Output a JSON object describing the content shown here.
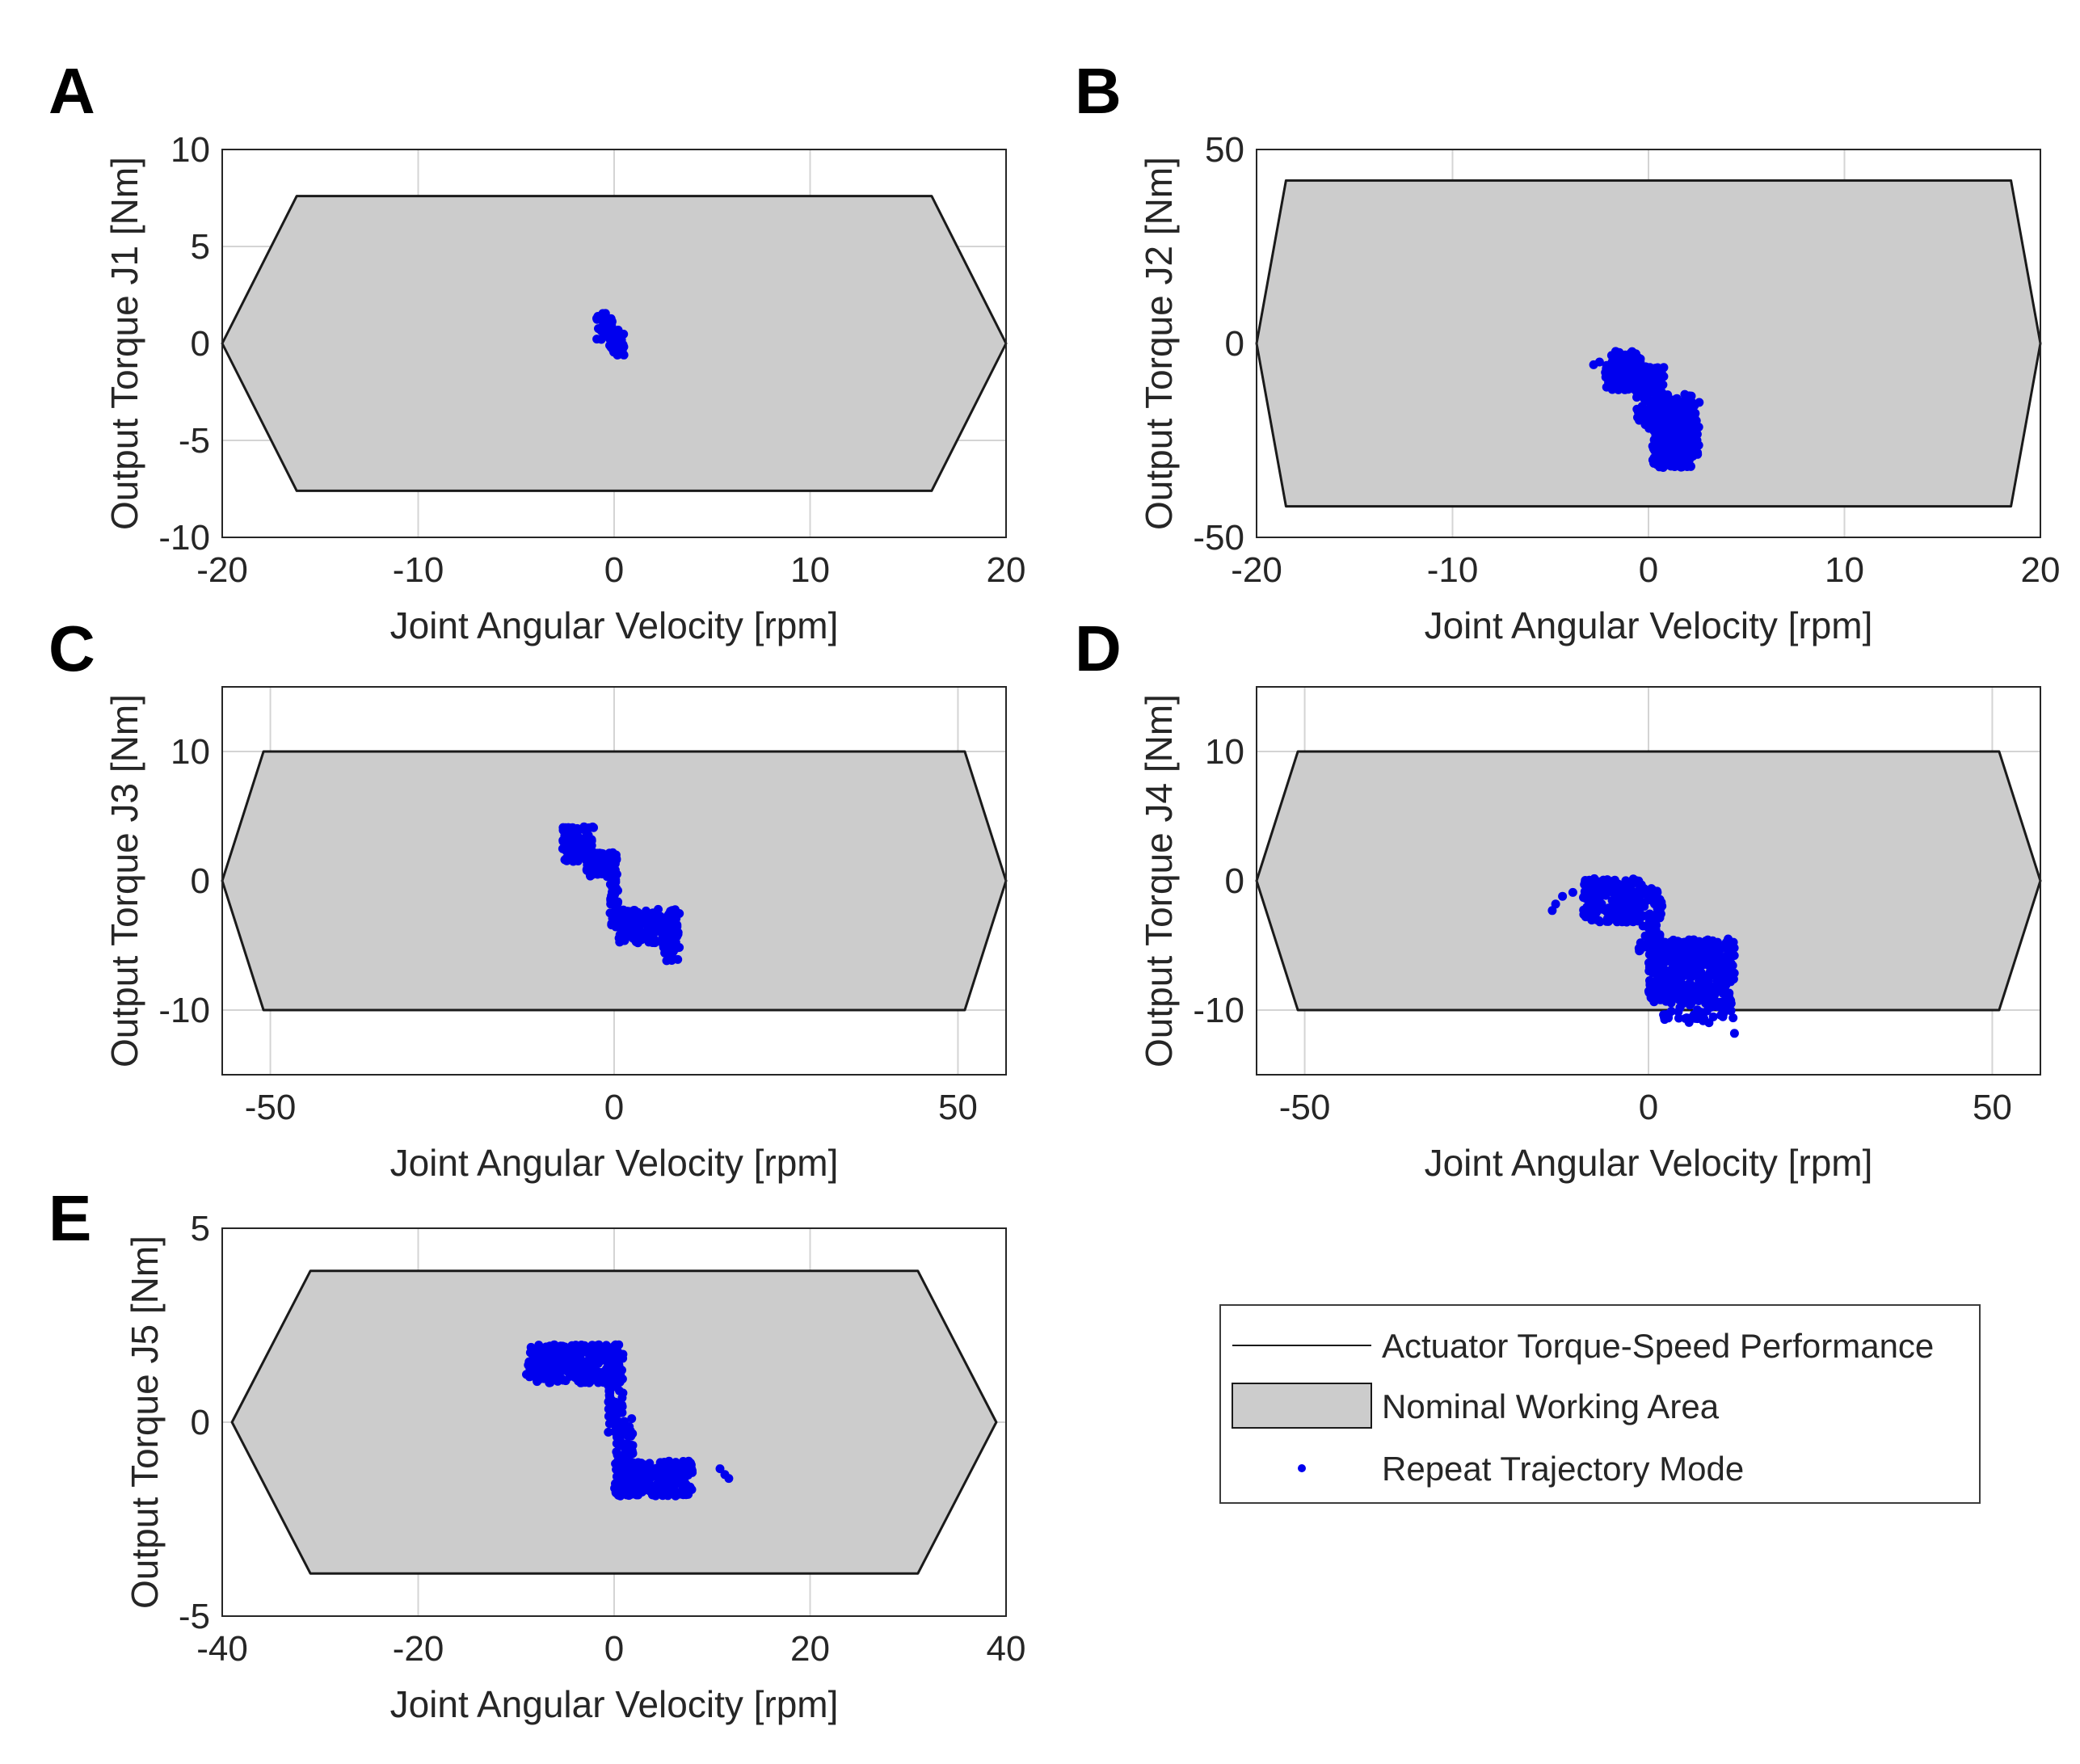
{
  "colors": {
    "region_fill": "#cccccc",
    "envelope_line": "#1a1a1a",
    "points": "#0000ee",
    "grid": "#d4d4d4",
    "axes": "#262626",
    "text": "#262626"
  },
  "legend": {
    "items": [
      {
        "label": "Actuator Torque-Speed Performance",
        "kind": "line"
      },
      {
        "label": "Nominal Working Area",
        "kind": "patch"
      },
      {
        "label": "Repeat Trajectory Mode",
        "kind": "marker"
      }
    ]
  },
  "chart_data": [
    {
      "panel": "A",
      "type": "scatter",
      "xlabel": "Joint Angular Velocity [rpm]",
      "ylabel": "Output Torque J1 [Nm]",
      "xlim": [
        -20,
        20
      ],
      "ylim": [
        -10,
        10
      ],
      "xticks": [
        -20,
        -10,
        0,
        10,
        20
      ],
      "yticks": [
        -10,
        -5,
        0,
        5,
        10
      ],
      "envelope": [
        [
          -20,
          0
        ],
        [
          -16.2,
          7.6
        ],
        [
          16.2,
          7.6
        ],
        [
          20,
          0
        ],
        [
          16.2,
          -7.6
        ],
        [
          -16.2,
          -7.6
        ]
      ],
      "clusters": [
        {
          "x_range": [
            -0.9,
            -0.1
          ],
          "y_range": [
            0.2,
            1.6
          ],
          "count": 40
        },
        {
          "x_range": [
            -0.3,
            0.5
          ],
          "y_range": [
            -0.6,
            0.8
          ],
          "count": 45
        }
      ],
      "points": []
    },
    {
      "panel": "B",
      "type": "scatter",
      "xlabel": "Joint Angular Velocity [rpm]",
      "ylabel": "Output Torque J2 [Nm]",
      "xlim": [
        -20,
        20
      ],
      "ylim": [
        -50,
        50
      ],
      "xticks": [
        -20,
        -10,
        0,
        10,
        20
      ],
      "yticks": [
        -50,
        0,
        50
      ],
      "envelope": [
        [
          -20,
          0
        ],
        [
          -18.5,
          42
        ],
        [
          18.5,
          42
        ],
        [
          20,
          0
        ],
        [
          18.5,
          -42
        ],
        [
          -18.5,
          -42
        ]
      ],
      "clusters": [
        {
          "x_range": [
            -2.2,
            -0.4
          ],
          "y_range": [
            -12,
            -2
          ],
          "count": 160
        },
        {
          "x_range": [
            -0.6,
            0.8
          ],
          "y_range": [
            -22,
            -6
          ],
          "count": 160
        },
        {
          "x_range": [
            0.2,
            2.2
          ],
          "y_range": [
            -32,
            -13
          ],
          "count": 260
        },
        {
          "x_range": [
            1.2,
            2.6
          ],
          "y_range": [
            -30,
            -15
          ],
          "count": 120
        }
      ],
      "points": [
        [
          -2.8,
          -5.5
        ],
        [
          -2.5,
          -4.8
        ]
      ]
    },
    {
      "panel": "C",
      "type": "scatter",
      "xlabel": "Joint Angular Velocity [rpm]",
      "ylabel": "Output Torque J3 [Nm]",
      "xlim": [
        -57,
        57
      ],
      "ylim": [
        -15,
        15
      ],
      "xticks": [
        -50,
        0,
        50
      ],
      "yticks": [
        -10,
        0,
        10
      ],
      "envelope": [
        [
          -57,
          0
        ],
        [
          -51,
          10
        ],
        [
          51,
          10
        ],
        [
          57,
          0
        ],
        [
          51,
          -10
        ],
        [
          -51,
          -10
        ]
      ],
      "clusters": [
        {
          "x_range": [
            -7.5,
            -3
          ],
          "y_range": [
            1.5,
            4.2
          ],
          "count": 150
        },
        {
          "x_range": [
            -4,
            0.3
          ],
          "y_range": [
            0.3,
            2.2
          ],
          "count": 110
        },
        {
          "x_range": [
            -0.6,
            0.6
          ],
          "y_range": [
            -3.6,
            1.8
          ],
          "count": 60
        },
        {
          "x_range": [
            0,
            9.5
          ],
          "y_range": [
            -4.8,
            -2.2
          ],
          "count": 170
        },
        {
          "x_range": [
            7,
            9.5
          ],
          "y_range": [
            -6.2,
            -3
          ],
          "count": 50
        }
      ],
      "points": []
    },
    {
      "panel": "D",
      "type": "scatter",
      "xlabel": "Joint Angular Velocity [rpm]",
      "ylabel": "Output Torque J4 [Nm]",
      "xlim": [
        -57,
        57
      ],
      "ylim": [
        -15,
        15
      ],
      "xticks": [
        -50,
        0,
        50
      ],
      "yticks": [
        -10,
        0,
        10
      ],
      "envelope": [
        [
          -57,
          0
        ],
        [
          -51,
          10
        ],
        [
          51,
          10
        ],
        [
          57,
          0
        ],
        [
          51,
          -10
        ],
        [
          -51,
          -10
        ]
      ],
      "clusters": [
        {
          "x_range": [
            -9.5,
            -1
          ],
          "y_range": [
            -3.2,
            0.2
          ],
          "count": 210
        },
        {
          "x_range": [
            -1.5,
            2
          ],
          "y_range": [
            -5.5,
            -0.5
          ],
          "count": 80
        },
        {
          "x_range": [
            0,
            12.5
          ],
          "y_range": [
            -9.5,
            -4.5
          ],
          "count": 430
        },
        {
          "x_range": [
            2,
            12
          ],
          "y_range": [
            -11,
            -8.5
          ],
          "count": 70
        }
      ],
      "points": [
        [
          -14,
          -2.3
        ],
        [
          -13.5,
          -1.8
        ],
        [
          -12.5,
          -1.2
        ],
        [
          -11,
          -0.9
        ],
        [
          12.5,
          -11.8
        ],
        [
          12.3,
          -10.6
        ]
      ]
    },
    {
      "panel": "E",
      "type": "scatter",
      "xlabel": "Joint Angular Velocity [rpm]",
      "ylabel": "Output Torque J5 [Nm]",
      "xlim": [
        -40,
        40
      ],
      "ylim": [
        -5,
        5
      ],
      "xticks": [
        -40,
        -20,
        0,
        20,
        40
      ],
      "yticks": [
        -5,
        0,
        5
      ],
      "envelope": [
        [
          -39,
          0
        ],
        [
          -31,
          3.9
        ],
        [
          31,
          3.9
        ],
        [
          39,
          0
        ],
        [
          31,
          -3.9
        ],
        [
          -31,
          -3.9
        ]
      ],
      "clusters": [
        {
          "x_range": [
            -9,
            0.5
          ],
          "y_range": [
            1.0,
            2.0
          ],
          "count": 330
        },
        {
          "x_range": [
            -0.6,
            0.9
          ],
          "y_range": [
            -0.3,
            2.0
          ],
          "count": 90
        },
        {
          "x_range": [
            0.2,
            2
          ],
          "y_range": [
            -1.5,
            0.1
          ],
          "count": 70
        },
        {
          "x_range": [
            0,
            8
          ],
          "y_range": [
            -1.9,
            -1.0
          ],
          "count": 300
        }
      ],
      "points": [
        [
          10.8,
          -1.2
        ],
        [
          11.3,
          -1.35
        ],
        [
          11.7,
          -1.45
        ]
      ]
    }
  ],
  "panels": [
    {
      "letter": "A",
      "ylabel": "Output Torque J1 [Nm]",
      "xlabel": "Joint Angular Velocity [rpm]"
    },
    {
      "letter": "B",
      "ylabel": "Output Torque J2 [Nm]",
      "xlabel": "Joint Angular Velocity [rpm]"
    },
    {
      "letter": "C",
      "ylabel": "Output Torque J3 [Nm]",
      "xlabel": "Joint Angular Velocity [rpm]"
    },
    {
      "letter": "D",
      "ylabel": "Output Torque J4 [Nm]",
      "xlabel": "Joint Angular Velocity [rpm]"
    },
    {
      "letter": "E",
      "ylabel": "Output Torque J5 [Nm]",
      "xlabel": "Joint Angular Velocity [rpm]"
    }
  ]
}
